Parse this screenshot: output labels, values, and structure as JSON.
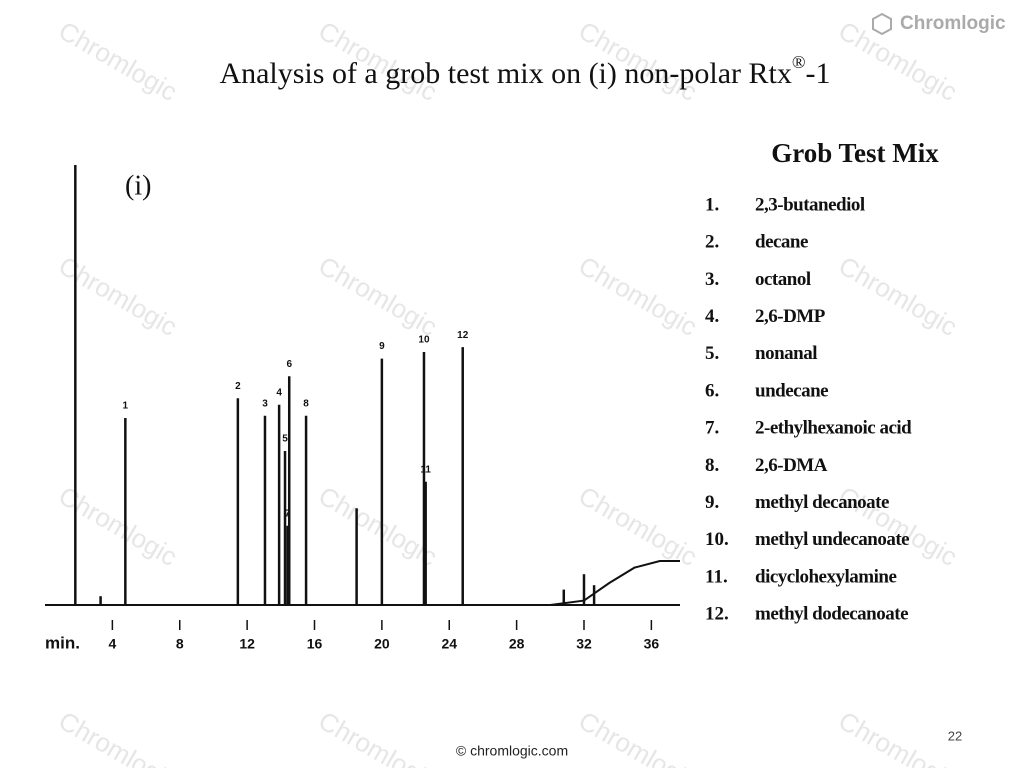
{
  "brand": "Chromlogic",
  "watermark": "Chromlogic",
  "header": {
    "title": "Analysis of a grob test mix on (i) non-polar Rtx",
    "title_sup": "®",
    "title_suffix": "-1"
  },
  "legend": {
    "title": "Grob Test Mix",
    "items": [
      {
        "num": "1.",
        "name": "2,3-butanediol"
      },
      {
        "num": "2.",
        "name": "decane"
      },
      {
        "num": "3.",
        "name": "octanol"
      },
      {
        "num": "4.",
        "name": "2,6-DMP"
      },
      {
        "num": "5.",
        "name": "nonanal"
      },
      {
        "num": "6.",
        "name": "undecane"
      },
      {
        "num": "7.",
        "name": "2-ethylhexanoic acid"
      },
      {
        "num": "8.",
        "name": "2,6-DMA"
      },
      {
        "num": "9.",
        "name": "methyl decanoate"
      },
      {
        "num": "10.",
        "name": "methyl undecanoate"
      },
      {
        "num": "11.",
        "name": "dicyclohexylamine"
      },
      {
        "num": "12.",
        "name": "methyl dodecanoate"
      }
    ]
  },
  "chart_data": {
    "type": "peaks",
    "panel_label": "(i)",
    "xlabel": "min.",
    "xlim": [
      0,
      37.7
    ],
    "xticks": [
      4,
      8,
      12,
      16,
      20,
      24,
      28,
      32,
      36
    ],
    "ylim": [
      0,
      100
    ],
    "series": [
      {
        "color": "#111111",
        "x": [
          1.8,
          3.3,
          4.77,
          11.45,
          13.06,
          13.9,
          14.25,
          14.4,
          14.5,
          15.5,
          18.5,
          20.0,
          22.5,
          22.6,
          24.8,
          30.8,
          32.0,
          32.6
        ],
        "values": [
          100,
          2,
          42.5,
          47,
          43,
          45.5,
          35,
          18,
          52,
          43,
          22,
          56,
          57.5,
          28,
          58.6,
          3.5,
          7,
          4.5
        ],
        "labels": [
          null,
          null,
          "1",
          "2",
          "3",
          "4",
          "5",
          "7",
          "6",
          "8",
          null,
          "9",
          "10",
          "11",
          "12",
          null,
          null,
          null
        ]
      },
      {
        "color": "#111111",
        "x": [
          30,
          32,
          33.5,
          35,
          36.5,
          37.7
        ],
        "values": [
          0,
          1,
          5,
          8.5,
          10,
          10
        ]
      }
    ]
  },
  "footer": "© chromlogic.com",
  "page_number": "22"
}
